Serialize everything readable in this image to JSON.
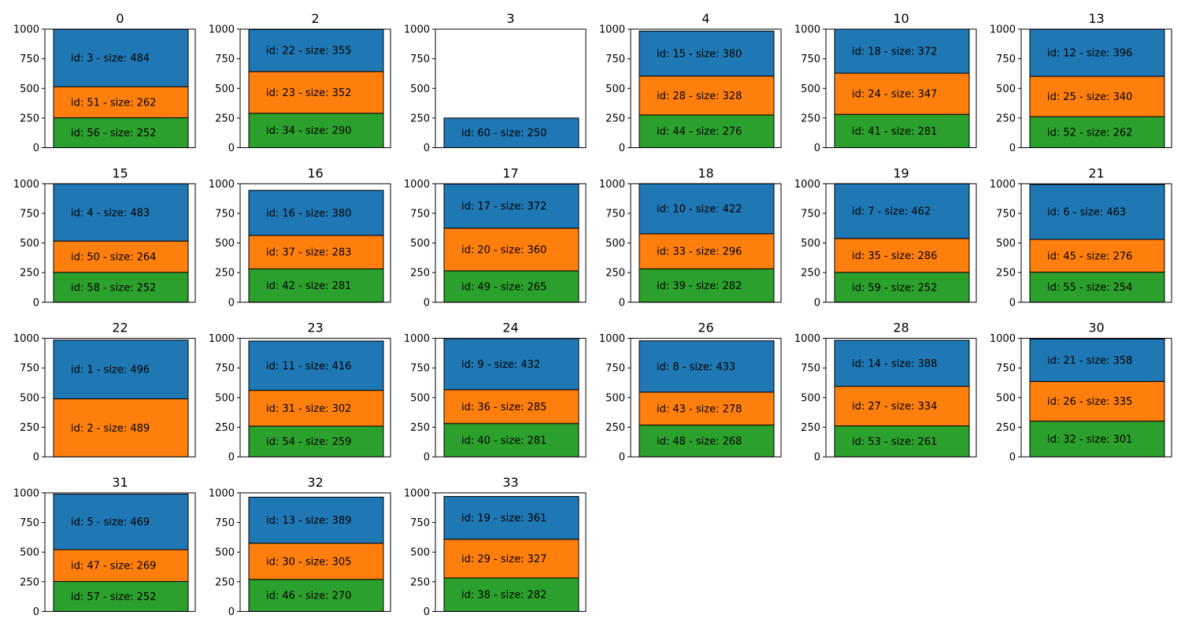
{
  "chart_data": {
    "type": "bar",
    "stacked": true,
    "ylim": [
      0,
      1000
    ],
    "yticks": [
      "0",
      "250",
      "500",
      "750",
      "1000"
    ],
    "grid": false,
    "colors": [
      "#2ca02c",
      "#ff7f0e",
      "#1f77b4"
    ],
    "panels": [
      {
        "title": "0",
        "segments": [
          {
            "label": "id: 56 - size: 252",
            "value": 252
          },
          {
            "label": "id: 51 - size: 262",
            "value": 262
          },
          {
            "label": "id: 3 - size: 484",
            "value": 484
          }
        ]
      },
      {
        "title": "2",
        "segments": [
          {
            "label": "id: 34 - size: 290",
            "value": 290
          },
          {
            "label": "id: 23 - size: 352",
            "value": 352
          },
          {
            "label": "id: 22 - size: 355",
            "value": 355
          }
        ]
      },
      {
        "title": "3",
        "segments": [
          {
            "label": "id: 60 - size: 250",
            "value": 250,
            "color": "#1f77b4"
          }
        ]
      },
      {
        "title": "4",
        "segments": [
          {
            "label": "id: 44 - size: 276",
            "value": 276
          },
          {
            "label": "id: 28 - size: 328",
            "value": 328
          },
          {
            "label": "id: 15 - size: 380",
            "value": 380
          }
        ]
      },
      {
        "title": "10",
        "segments": [
          {
            "label": "id: 41 - size: 281",
            "value": 281
          },
          {
            "label": "id: 24 - size: 347",
            "value": 347
          },
          {
            "label": "id: 18 - size: 372",
            "value": 372
          }
        ]
      },
      {
        "title": "13",
        "segments": [
          {
            "label": "id: 52 - size: 262",
            "value": 262
          },
          {
            "label": "id: 25 - size: 340",
            "value": 340
          },
          {
            "label": "id: 12 - size: 396",
            "value": 396
          }
        ]
      },
      {
        "title": "15",
        "segments": [
          {
            "label": "id: 58 - size: 252",
            "value": 252
          },
          {
            "label": "id: 50 - size: 264",
            "value": 264
          },
          {
            "label": "id: 4 - size: 483",
            "value": 483
          }
        ]
      },
      {
        "title": "16",
        "segments": [
          {
            "label": "id: 42 - size: 281",
            "value": 281
          },
          {
            "label": "id: 37 - size: 283",
            "value": 283
          },
          {
            "label": "id: 16 - size: 380",
            "value": 380
          }
        ]
      },
      {
        "title": "17",
        "segments": [
          {
            "label": "id: 49 - size: 265",
            "value": 265
          },
          {
            "label": "id: 20 - size: 360",
            "value": 360
          },
          {
            "label": "id: 17 - size: 372",
            "value": 372
          }
        ]
      },
      {
        "title": "18",
        "segments": [
          {
            "label": "id: 39 - size: 282",
            "value": 282
          },
          {
            "label": "id: 33 - size: 296",
            "value": 296
          },
          {
            "label": "id: 10 - size: 422",
            "value": 422
          }
        ]
      },
      {
        "title": "19",
        "segments": [
          {
            "label": "id: 59 - size: 252",
            "value": 252
          },
          {
            "label": "id: 35 - size: 286",
            "value": 286
          },
          {
            "label": "id: 7 - size: 462",
            "value": 462
          }
        ]
      },
      {
        "title": "21",
        "segments": [
          {
            "label": "id: 55 - size: 254",
            "value": 254
          },
          {
            "label": "id: 45 - size: 276",
            "value": 276
          },
          {
            "label": "id: 6 - size: 463",
            "value": 463
          }
        ]
      },
      {
        "title": "22",
        "segments": [
          {
            "label": "id: 2 - size: 489",
            "value": 489,
            "color": "#ff7f0e"
          },
          {
            "label": "id: 1 - size: 496",
            "value": 496,
            "color": "#1f77b4"
          }
        ]
      },
      {
        "title": "23",
        "segments": [
          {
            "label": "id: 54 - size: 259",
            "value": 259
          },
          {
            "label": "id: 31 - size: 302",
            "value": 302
          },
          {
            "label": "id: 11 - size: 416",
            "value": 416
          }
        ]
      },
      {
        "title": "24",
        "segments": [
          {
            "label": "id: 40 - size: 281",
            "value": 281
          },
          {
            "label": "id: 36 - size: 285",
            "value": 285
          },
          {
            "label": "id: 9 - size: 432",
            "value": 432
          }
        ]
      },
      {
        "title": "26",
        "segments": [
          {
            "label": "id: 48 - size: 268",
            "value": 268
          },
          {
            "label": "id: 43 - size: 278",
            "value": 278
          },
          {
            "label": "id: 8 - size: 433",
            "value": 433
          }
        ]
      },
      {
        "title": "28",
        "segments": [
          {
            "label": "id: 53 - size: 261",
            "value": 261
          },
          {
            "label": "id: 27 - size: 334",
            "value": 334
          },
          {
            "label": "id: 14 - size: 388",
            "value": 388
          }
        ]
      },
      {
        "title": "30",
        "segments": [
          {
            "label": "id: 32 - size: 301",
            "value": 301
          },
          {
            "label": "id: 26 - size: 335",
            "value": 335
          },
          {
            "label": "id: 21 - size: 358",
            "value": 358
          }
        ]
      },
      {
        "title": "31",
        "segments": [
          {
            "label": "id: 57 - size: 252",
            "value": 252
          },
          {
            "label": "id: 47 - size: 269",
            "value": 269
          },
          {
            "label": "id: 5 - size: 469",
            "value": 469
          }
        ]
      },
      {
        "title": "32",
        "segments": [
          {
            "label": "id: 46 - size: 270",
            "value": 270
          },
          {
            "label": "id: 30 - size: 305",
            "value": 305
          },
          {
            "label": "id: 13 - size: 389",
            "value": 389
          }
        ]
      },
      {
        "title": "33",
        "segments": [
          {
            "label": "id: 38 - size: 282",
            "value": 282
          },
          {
            "label": "id: 29 - size: 327",
            "value": 327
          },
          {
            "label": "id: 19 - size: 361",
            "value": 361
          }
        ]
      }
    ]
  }
}
